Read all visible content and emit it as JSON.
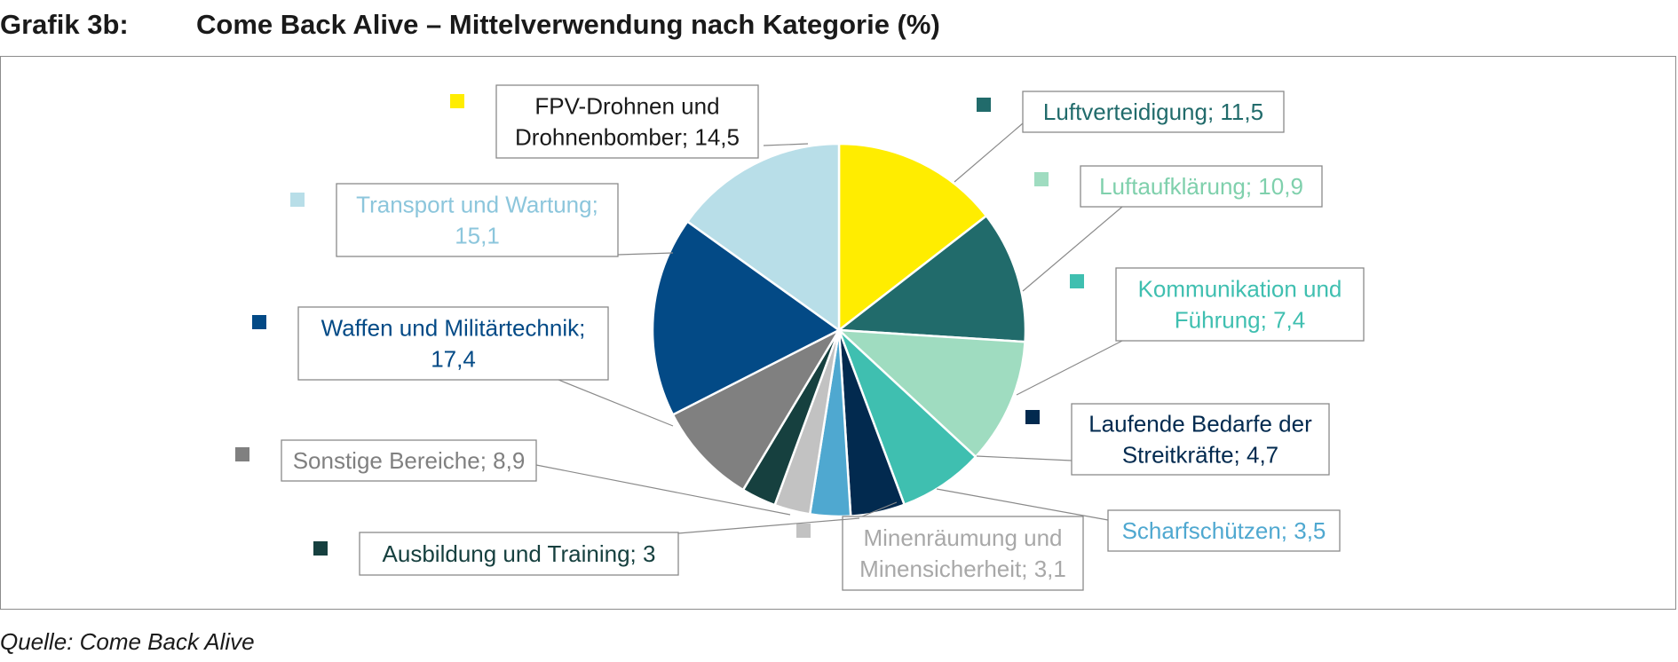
{
  "header": {
    "figure_label": "Grafik 3b:",
    "title": "Come Back Alive – Mittelverwendung nach Kategorie (%)"
  },
  "source": "Quelle: Come Back Alive",
  "chart_data": {
    "type": "pie",
    "start_angle_deg": 0,
    "direction": "clockwise",
    "slices": [
      {
        "name": "FPV-Drohnen und Drohnenbomber",
        "value": 14.5,
        "label_lines": [
          "FPV-Drohnen und",
          "Drohnenbomber; 14,5"
        ],
        "color": "#ffed00",
        "text_color": "#1a1a1a"
      },
      {
        "name": "Luftverteidigung",
        "value": 11.5,
        "label_lines": [
          "Luftverteidigung; 11,5"
        ],
        "color": "#216b6b",
        "text_color": "#216b6b"
      },
      {
        "name": "Luftaufklärung",
        "value": 10.9,
        "label_lines": [
          "Luftaufklärung; 10,9"
        ],
        "color": "#9fdcc0",
        "text_color": "#7fd0ac"
      },
      {
        "name": "Kommunikation und Führung",
        "value": 7.4,
        "label_lines": [
          "Kommunikation und",
          "Führung; 7,4"
        ],
        "color": "#3fbfb0",
        "text_color": "#3fbfb0"
      },
      {
        "name": "Laufende Bedarfe der Streitkräfte",
        "value": 4.7,
        "label_lines": [
          "Laufende Bedarfe der",
          "Streitkräfte; 4,7"
        ],
        "color": "#022a4f",
        "text_color": "#022a4f"
      },
      {
        "name": "Scharfschützen",
        "value": 3.5,
        "label_lines": [
          "Scharfschützen; 3,5"
        ],
        "color": "#4fa8d0",
        "text_color": "#4fa8d0"
      },
      {
        "name": "Minenräumung und Minensicherheit",
        "value": 3.1,
        "label_lines": [
          "Minenräumung und",
          "Minensicherheit; 3,1"
        ],
        "color": "#c2c2c2",
        "text_color": "#a8a8a8"
      },
      {
        "name": "Ausbildung und Training",
        "value": 3,
        "label_lines": [
          "Ausbildung und Training; 3"
        ],
        "color": "#16403f",
        "text_color": "#16403f"
      },
      {
        "name": "Sonstige Bereiche",
        "value": 8.9,
        "label_lines": [
          "Sonstige Bereiche; 8,9"
        ],
        "color": "#808080",
        "text_color": "#808080"
      },
      {
        "name": "Waffen und Militärtechnik",
        "value": 17.4,
        "label_lines": [
          "Waffen und Militärtechnik;",
          "17,4"
        ],
        "color": "#034a86",
        "text_color": "#034a86"
      },
      {
        "name": "Transport und Wartung",
        "value": 15.1,
        "label_lines": [
          "Transport und Wartung;",
          "15,1"
        ],
        "color": "#b8dee8",
        "text_color": "#8cc6dc"
      }
    ]
  }
}
